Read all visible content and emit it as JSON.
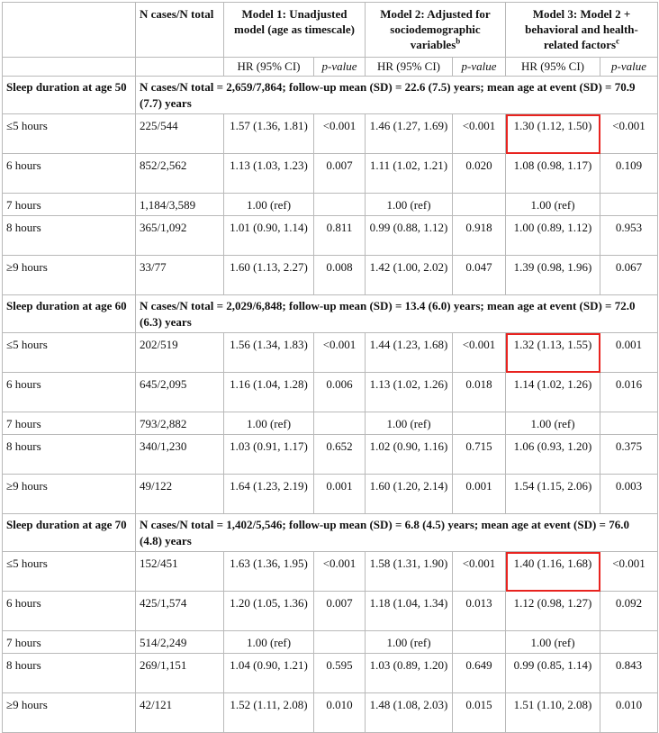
{
  "header": {
    "col_ncases": "N cases/N total",
    "model1": "Model 1: Unadjusted model (age as timescale)",
    "model2": "Model 2: Adjusted for sociodemographic variables",
    "model2_sup": "b",
    "model3": "Model 3: Model 2 + behavioral and health-related factors",
    "model3_sup": "c",
    "hr_label": "HR (95% CI)",
    "p_label": "p-value"
  },
  "sections": [
    {
      "title": "Sleep duration at age 50",
      "summary": "N cases/N total = 2,659/7,864; follow-up mean (SD) = 22.6 (7.5) years; mean age at event (SD) = 70.9 (7.7) years",
      "rows": [
        {
          "label": "≤5 hours",
          "n": "225/544",
          "m1_hr": "1.57 (1.36, 1.81)",
          "m1_p": "<0.001",
          "m2_hr": "1.46 (1.27, 1.69)",
          "m2_p": "<0.001",
          "m3_hr": "1.30 (1.12, 1.50)",
          "m3_p": "<0.001"
        },
        {
          "label": "6 hours",
          "n": "852/2,562",
          "m1_hr": "1.13 (1.03, 1.23)",
          "m1_p": "0.007",
          "m2_hr": "1.11 (1.02, 1.21)",
          "m2_p": "0.020",
          "m3_hr": "1.08 (0.98, 1.17)",
          "m3_p": "0.109"
        },
        {
          "label": "7 hours",
          "n": "1,184/3,589",
          "m1_hr": "1.00 (ref)",
          "m1_p": "",
          "m2_hr": "1.00 (ref)",
          "m2_p": "",
          "m3_hr": "1.00 (ref)",
          "m3_p": ""
        },
        {
          "label": "8 hours",
          "n": "365/1,092",
          "m1_hr": "1.01 (0.90, 1.14)",
          "m1_p": "0.811",
          "m2_hr": "0.99 (0.88, 1.12)",
          "m2_p": "0.918",
          "m3_hr": "1.00 (0.89, 1.12)",
          "m3_p": "0.953"
        },
        {
          "label": "≥9 hours",
          "n": "33/77",
          "m1_hr": "1.60 (1.13, 2.27)",
          "m1_p": "0.008",
          "m2_hr": "1.42 (1.00, 2.02)",
          "m2_p": "0.047",
          "m3_hr": "1.39 (0.98, 1.96)",
          "m3_p": "0.067"
        }
      ]
    },
    {
      "title": "Sleep duration at age 60",
      "summary": "N cases/N total = 2,029/6,848; follow-up mean (SD) = 13.4 (6.0) years; mean age at event (SD) = 72.0 (6.3) years",
      "rows": [
        {
          "label": "≤5 hours",
          "n": "202/519",
          "m1_hr": "1.56 (1.34, 1.83)",
          "m1_p": "<0.001",
          "m2_hr": "1.44 (1.23, 1.68)",
          "m2_p": "<0.001",
          "m3_hr": "1.32 (1.13, 1.55)",
          "m3_p": "0.001"
        },
        {
          "label": "6 hours",
          "n": "645/2,095",
          "m1_hr": "1.16 (1.04, 1.28)",
          "m1_p": "0.006",
          "m2_hr": "1.13 (1.02, 1.26)",
          "m2_p": "0.018",
          "m3_hr": "1.14 (1.02, 1.26)",
          "m3_p": "0.016"
        },
        {
          "label": "7 hours",
          "n": "793/2,882",
          "m1_hr": "1.00 (ref)",
          "m1_p": "",
          "m2_hr": "1.00 (ref)",
          "m2_p": "",
          "m3_hr": "1.00 (ref)",
          "m3_p": ""
        },
        {
          "label": "8 hours",
          "n": "340/1,230",
          "m1_hr": "1.03 (0.91, 1.17)",
          "m1_p": "0.652",
          "m2_hr": "1.02 (0.90, 1.16)",
          "m2_p": "0.715",
          "m3_hr": "1.06 (0.93, 1.20)",
          "m3_p": "0.375"
        },
        {
          "label": "≥9 hours",
          "n": "49/122",
          "m1_hr": "1.64 (1.23, 2.19)",
          "m1_p": "0.001",
          "m2_hr": "1.60 (1.20, 2.14)",
          "m2_p": "0.001",
          "m3_hr": "1.54 (1.15, 2.06)",
          "m3_p": "0.003"
        }
      ]
    },
    {
      "title": "Sleep duration at age 70",
      "summary": "N cases/N total = 1,402/5,546; follow-up mean (SD) = 6.8 (4.5) years; mean age at event (SD) = 76.0 (4.8) years",
      "rows": [
        {
          "label": "≤5 hours",
          "n": "152/451",
          "m1_hr": "1.63 (1.36, 1.95)",
          "m1_p": "<0.001",
          "m2_hr": "1.58 (1.31, 1.90)",
          "m2_p": "<0.001",
          "m3_hr": "1.40 (1.16, 1.68)",
          "m3_p": "<0.001"
        },
        {
          "label": "6 hours",
          "n": "425/1,574",
          "m1_hr": "1.20 (1.05, 1.36)",
          "m1_p": "0.007",
          "m2_hr": "1.18 (1.04, 1.34)",
          "m2_p": "0.013",
          "m3_hr": "1.12 (0.98, 1.27)",
          "m3_p": "0.092"
        },
        {
          "label": "7 hours",
          "n": "514/2,249",
          "m1_hr": "1.00 (ref)",
          "m1_p": "",
          "m2_hr": "1.00 (ref)",
          "m2_p": "",
          "m3_hr": "1.00 (ref)",
          "m3_p": ""
        },
        {
          "label": "8 hours",
          "n": "269/1,151",
          "m1_hr": "1.04 (0.90, 1.21)",
          "m1_p": "0.595",
          "m2_hr": "1.03 (0.89, 1.20)",
          "m2_p": "0.649",
          "m3_hr": "0.99 (0.85, 1.14)",
          "m3_p": "0.843"
        },
        {
          "label": "≥9 hours",
          "n": "42/121",
          "m1_hr": "1.52 (1.11, 2.08)",
          "m1_p": "0.010",
          "m2_hr": "1.48 (1.08, 2.03)",
          "m2_p": "0.015",
          "m3_hr": "1.51 (1.10, 2.08)",
          "m3_p": "0.010"
        }
      ]
    }
  ],
  "highlight_color": "#e8231f"
}
